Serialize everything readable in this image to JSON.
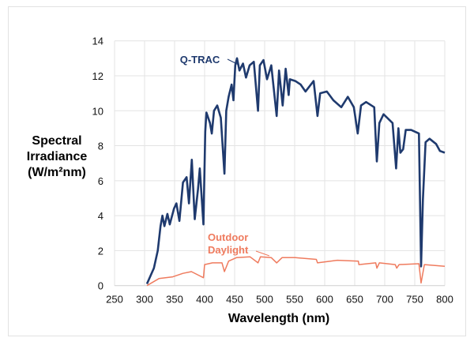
{
  "chart_data": {
    "type": "line",
    "title": "",
    "xlabel": "Wavelength (nm)",
    "ylabel_lines": [
      "Spectral",
      "Irradiance",
      "(W/m²nm)"
    ],
    "xlim": [
      250,
      800
    ],
    "ylim": [
      0,
      14
    ],
    "xticks": [
      250,
      300,
      350,
      400,
      450,
      500,
      550,
      600,
      650,
      700,
      750,
      800
    ],
    "yticks": [
      0,
      2,
      4,
      6,
      8,
      10,
      12,
      14
    ],
    "grid": true,
    "legend": "inline labels",
    "series": [
      {
        "name": "Q-TRAC",
        "color": "#1f3a6e",
        "points": [
          [
            304,
            0.1
          ],
          [
            315.5,
            1.0
          ],
          [
            322,
            2.0
          ],
          [
            326.6,
            3.4
          ],
          [
            329.8,
            4.0
          ],
          [
            333,
            3.4
          ],
          [
            338,
            4.1
          ],
          [
            342,
            3.5
          ],
          [
            349,
            4.4
          ],
          [
            353,
            4.7
          ],
          [
            358,
            3.7
          ],
          [
            364,
            5.9
          ],
          [
            370,
            6.2
          ],
          [
            374,
            4.7
          ],
          [
            378.7,
            7.2
          ],
          [
            383.5,
            3.8
          ],
          [
            389,
            5.5
          ],
          [
            392,
            6.7
          ],
          [
            398,
            3.5
          ],
          [
            401,
            8.8
          ],
          [
            403,
            9.9
          ],
          [
            409,
            9.3
          ],
          [
            412,
            8.7
          ],
          [
            415.6,
            10.0
          ],
          [
            421,
            10.3
          ],
          [
            427,
            9.6
          ],
          [
            433,
            6.4
          ],
          [
            436,
            10.0
          ],
          [
            440,
            10.8
          ],
          [
            445,
            11.5
          ],
          [
            448,
            10.6
          ],
          [
            451,
            12.6
          ],
          [
            454,
            13.0
          ],
          [
            458,
            12.3
          ],
          [
            464,
            12.7
          ],
          [
            469,
            11.9
          ],
          [
            475,
            12.6
          ],
          [
            482,
            12.8
          ],
          [
            489,
            10.0
          ],
          [
            492,
            12.6
          ],
          [
            498,
            12.9
          ],
          [
            504,
            11.8
          ],
          [
            511,
            12.6
          ],
          [
            520,
            9.7
          ],
          [
            524,
            12.3
          ],
          [
            530,
            10.3
          ],
          [
            535,
            12.4
          ],
          [
            540,
            10.9
          ],
          [
            542,
            11.8
          ],
          [
            551,
            11.7
          ],
          [
            560,
            11.5
          ],
          [
            568,
            11.1
          ],
          [
            581.6,
            11.7
          ],
          [
            588,
            9.7
          ],
          [
            592.5,
            11.0
          ],
          [
            603.5,
            11.1
          ],
          [
            614.5,
            10.6
          ],
          [
            627.6,
            10.2
          ],
          [
            638.6,
            10.8
          ],
          [
            648.6,
            10.2
          ],
          [
            655,
            8.7
          ],
          [
            660.5,
            10.3
          ],
          [
            669,
            10.5
          ],
          [
            682.5,
            10.2
          ],
          [
            686.8,
            7.1
          ],
          [
            691,
            9.3
          ],
          [
            698,
            9.8
          ],
          [
            713,
            9.3
          ],
          [
            719,
            6.7
          ],
          [
            722.8,
            9.0
          ],
          [
            726,
            7.6
          ],
          [
            730.7,
            7.8
          ],
          [
            735,
            8.9
          ],
          [
            744,
            8.9
          ],
          [
            757,
            8.7
          ],
          [
            760.5,
            1.1
          ],
          [
            763.6,
            4.9
          ],
          [
            768,
            8.2
          ],
          [
            774.6,
            8.4
          ],
          [
            785.5,
            8.1
          ],
          [
            792,
            7.7
          ],
          [
            800,
            7.6
          ]
        ]
      },
      {
        "name": "Outdoor Daylight",
        "color": "#ef7b5e",
        "points": [
          [
            304,
            0
          ],
          [
            324,
            0.4
          ],
          [
            347,
            0.5
          ],
          [
            364,
            0.7
          ],
          [
            378,
            0.8
          ],
          [
            398,
            0.45
          ],
          [
            400,
            1.2
          ],
          [
            413,
            1.3
          ],
          [
            429,
            1.3
          ],
          [
            433,
            0.8
          ],
          [
            440,
            1.4
          ],
          [
            453,
            1.6
          ],
          [
            475.5,
            1.65
          ],
          [
            489,
            1.3
          ],
          [
            493,
            1.65
          ],
          [
            511,
            1.6
          ],
          [
            520,
            1.3
          ],
          [
            529,
            1.6
          ],
          [
            551,
            1.6
          ],
          [
            586,
            1.5
          ],
          [
            588,
            1.3
          ],
          [
            621,
            1.45
          ],
          [
            656,
            1.4
          ],
          [
            657,
            1.2
          ],
          [
            685,
            1.3
          ],
          [
            687,
            1.0
          ],
          [
            691,
            1.3
          ],
          [
            717.5,
            1.2
          ],
          [
            720,
            1.0
          ],
          [
            724,
            1.2
          ],
          [
            757,
            1.25
          ],
          [
            760.5,
            0.15
          ],
          [
            766,
            1.2
          ],
          [
            800,
            1.1
          ]
        ]
      }
    ],
    "labels": {
      "qtrac": "Q-TRAC",
      "daylight_line1": "Outdoor",
      "daylight_line2": "Daylight"
    }
  }
}
